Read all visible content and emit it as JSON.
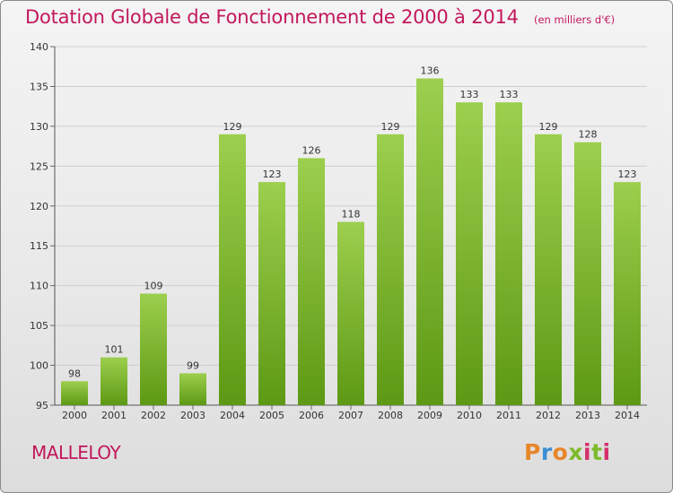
{
  "header": {
    "title": "Dotation Globale de Fonctionnement de 2000 à 2014",
    "unit_note": "(en milliers d'€)"
  },
  "footer": {
    "commune": "MALLELOY",
    "logo_text": "Proxiti"
  },
  "colors": {
    "title": "#c2185b",
    "bar_top": "#9ccf4d",
    "bar_bottom": "#5d9914",
    "logo": [
      "#e8862a",
      "#3b8fd4",
      "#7cbb2b",
      "#d5306d"
    ]
  },
  "chart_data": {
    "type": "bar",
    "title": "Dotation Globale de Fonctionnement de 2000 à 2014",
    "xlabel": "",
    "ylabel": "",
    "categories": [
      "2000",
      "2001",
      "2002",
      "2003",
      "2004",
      "2005",
      "2006",
      "2007",
      "2008",
      "2009",
      "2010",
      "2011",
      "2012",
      "2013",
      "2014"
    ],
    "values": [
      98,
      101,
      109,
      99,
      129,
      123,
      126,
      118,
      129,
      136,
      133,
      133,
      129,
      128,
      123
    ],
    "ylim": [
      95,
      140
    ],
    "yticks": [
      95,
      100,
      105,
      110,
      115,
      120,
      125,
      130,
      135,
      140
    ],
    "grid": true,
    "legend": "none"
  }
}
